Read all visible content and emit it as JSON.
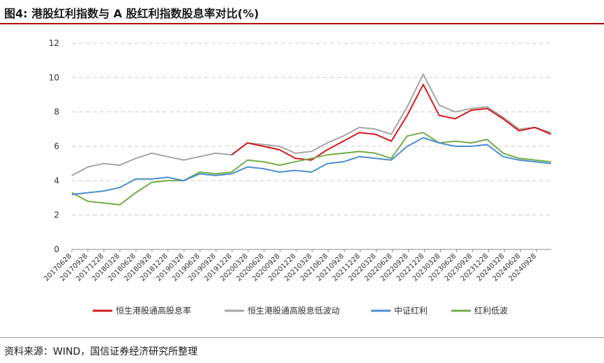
{
  "title": "图4: 港股红利指数与 A 股红利指数股息率对比(%)",
  "source": "资料来源：WIND，国信证券经济研究所整理",
  "chart_data": {
    "type": "line",
    "ylim": [
      0,
      12
    ],
    "yticks": [
      "0",
      "2",
      "4",
      "6",
      "8",
      "10",
      "12"
    ],
    "grid": true,
    "legend_position": "bottom",
    "x_tick_labels": [
      "20170628",
      "20170928",
      "20171228",
      "20180328",
      "20180628",
      "20180928",
      "20181228",
      "20190328",
      "20190628",
      "20190928",
      "20191228",
      "20200328",
      "20200628",
      "20200928",
      "20201228",
      "20210328",
      "20210628",
      "20210928",
      "20211228",
      "20220328",
      "20220628",
      "20220928",
      "20221228",
      "20230328",
      "20230628",
      "20230928",
      "20231228",
      "20240328",
      "20240628",
      "20240928"
    ],
    "x": [
      "2017-06",
      "2017-09",
      "2017-12",
      "2018-03",
      "2018-06",
      "2018-09",
      "2018-12",
      "2019-03",
      "2019-06",
      "2019-09",
      "2019-12",
      "2020-03",
      "2020-06",
      "2020-09",
      "2020-12",
      "2021-03",
      "2021-06",
      "2021-09",
      "2021-12",
      "2022-03",
      "2022-06",
      "2022-09",
      "2022-12",
      "2023-03",
      "2023-06",
      "2023-09",
      "2023-12",
      "2024-03",
      "2024-06",
      "2024-09",
      "2024-12"
    ],
    "series": [
      {
        "name": "恒生港股通高股息率",
        "color": "#d7191c",
        "values": [
          null,
          null,
          null,
          null,
          null,
          null,
          null,
          null,
          null,
          null,
          5.5,
          6.2,
          6.0,
          5.8,
          5.3,
          5.2,
          5.8,
          6.3,
          6.8,
          6.7,
          6.3,
          7.8,
          9.6,
          7.8,
          7.6,
          8.1,
          8.2,
          7.6,
          6.9,
          7.1,
          6.7
        ]
      },
      {
        "name": "恒生港股通高股息低波动",
        "color": "#a6a6a6",
        "values": [
          4.3,
          4.8,
          5.0,
          4.9,
          5.3,
          5.6,
          5.4,
          5.2,
          5.4,
          5.6,
          5.5,
          6.2,
          6.1,
          6.0,
          5.6,
          5.7,
          6.2,
          6.6,
          7.1,
          7.0,
          6.7,
          8.3,
          10.2,
          8.4,
          8.0,
          8.2,
          8.3,
          7.7,
          7.0,
          7.1,
          6.8
        ]
      },
      {
        "name": "中证红利",
        "color": "#4a8ed1",
        "values": [
          3.2,
          3.3,
          3.4,
          3.6,
          4.1,
          4.1,
          4.2,
          4.0,
          4.4,
          4.3,
          4.4,
          4.8,
          4.7,
          4.5,
          4.6,
          4.5,
          5.0,
          5.1,
          5.4,
          5.3,
          5.2,
          6.0,
          6.5,
          6.2,
          6.0,
          6.0,
          6.1,
          5.4,
          5.2,
          5.1,
          5.0
        ]
      },
      {
        "name": "红利低波",
        "color": "#70ad47",
        "values": [
          3.3,
          2.8,
          2.7,
          2.6,
          3.3,
          3.9,
          4.0,
          4.0,
          4.5,
          4.4,
          4.5,
          5.2,
          5.1,
          4.9,
          5.1,
          5.3,
          5.5,
          5.6,
          5.7,
          5.6,
          5.3,
          6.6,
          6.8,
          6.2,
          6.3,
          6.2,
          6.4,
          5.6,
          5.3,
          5.2,
          5.1
        ]
      }
    ]
  }
}
